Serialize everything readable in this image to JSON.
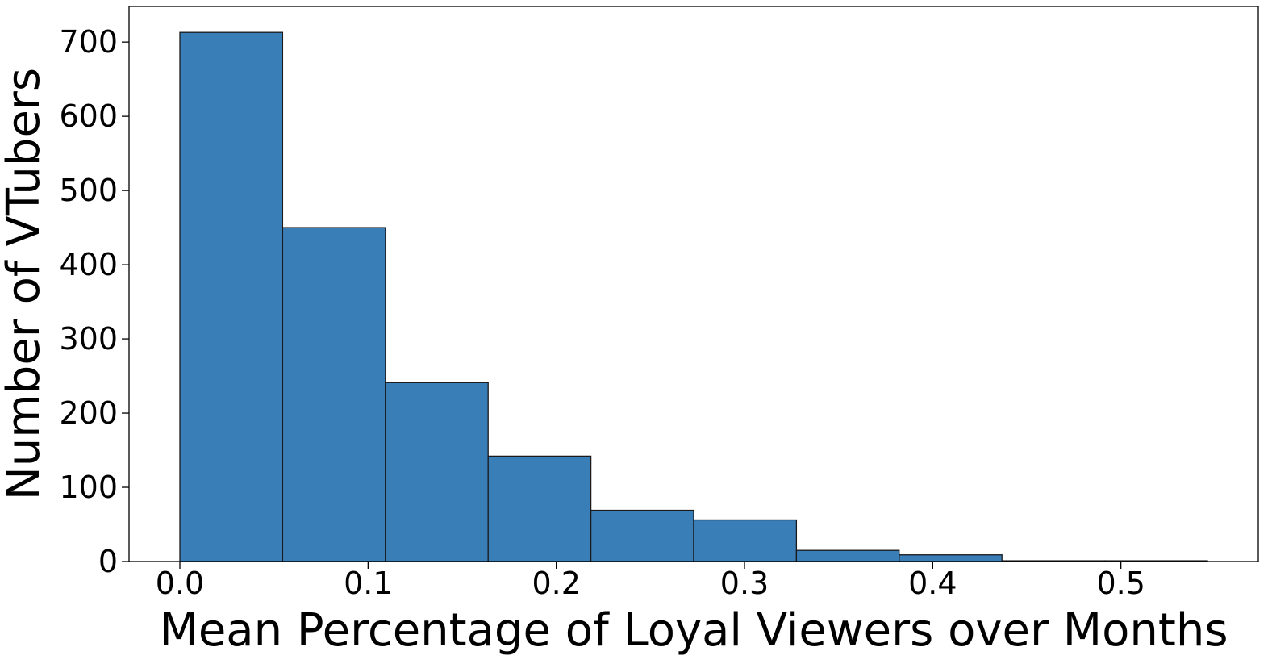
{
  "chart_data": {
    "type": "bar",
    "subtype": "histogram",
    "title": "",
    "xlabel": "Mean Percentage of Loyal Viewers over Months",
    "ylabel": "Number of VTubers",
    "bin_edges": [
      0.0,
      0.0546,
      0.1092,
      0.1638,
      0.2184,
      0.273,
      0.3276,
      0.3822,
      0.4368,
      0.4914,
      0.546
    ],
    "values": [
      713,
      450,
      241,
      142,
      69,
      56,
      15,
      9,
      1,
      1
    ],
    "xlim": [
      -0.027,
      0.573
    ],
    "ylim": [
      0,
      748
    ],
    "xticks": [
      0.0,
      0.1,
      0.2,
      0.3,
      0.4,
      0.5
    ],
    "xtick_labels": [
      "0.0",
      "0.1",
      "0.2",
      "0.3",
      "0.4",
      "0.5"
    ],
    "yticks": [
      0,
      100,
      200,
      300,
      400,
      500,
      600,
      700
    ],
    "ytick_labels": [
      "0",
      "100",
      "200",
      "300",
      "400",
      "500",
      "600",
      "700"
    ],
    "bar_color": "#3a7eb8",
    "edge_color": "#1a1a1a",
    "grid": false,
    "legend": "none"
  }
}
